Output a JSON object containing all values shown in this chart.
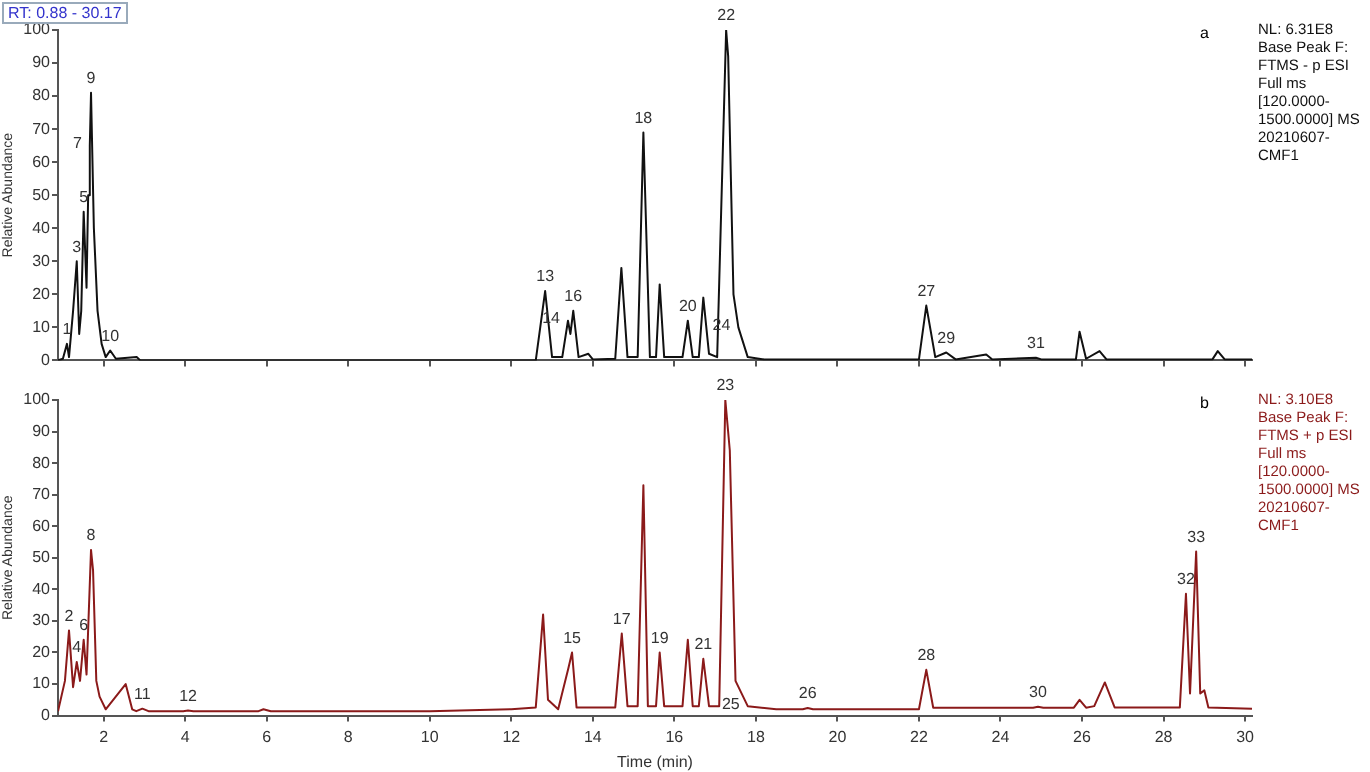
{
  "chart_data": [
    {
      "type": "line",
      "title": "RT: 0.88 - 30.17",
      "ylabel": "Relative Abundance",
      "tick_labels": "y",
      "marker": "none",
      "line_style": "solid",
      "xlim": [
        0.88,
        30.17
      ],
      "ylim": [
        0,
        100
      ],
      "xticks": [
        2,
        4,
        6,
        8,
        10,
        12,
        14,
        16,
        18,
        20,
        22,
        24,
        26,
        28,
        30
      ],
      "yticks": [
        0,
        10,
        20,
        30,
        40,
        50,
        60,
        70,
        80,
        90,
        100
      ],
      "x": [
        0.88,
        1.0,
        1.1,
        1.15,
        1.25,
        1.34,
        1.4,
        1.45,
        1.51,
        1.58,
        1.62,
        1.66,
        1.69,
        1.76,
        1.85,
        1.95,
        2.05,
        2.16,
        2.3,
        2.81,
        2.9,
        12.6,
        12.83,
        13.0,
        13.25,
        13.39,
        13.45,
        13.52,
        13.65,
        13.89,
        14.0,
        14.55,
        14.7,
        14.85,
        15.1,
        15.24,
        15.4,
        15.55,
        15.64,
        15.75,
        16.2,
        16.33,
        16.45,
        16.6,
        16.71,
        16.85,
        17.05,
        17.27,
        17.32,
        17.45,
        17.57,
        17.8,
        18.2,
        22.0,
        22.18,
        22.4,
        22.67,
        22.9,
        23.65,
        23.8,
        24.87,
        25.0,
        25.85,
        25.94,
        26.1,
        26.43,
        26.6,
        29.2,
        29.33,
        29.5,
        30.17
      ],
      "series": [
        {
          "color": "#111111",
          "values": [
            0,
            0.5,
            5,
            1,
            15,
            30,
            8,
            15,
            45,
            22,
            50,
            65,
            81,
            40,
            15,
            5,
            1,
            3,
            0.5,
            1,
            0,
            0,
            21,
            1,
            1,
            12,
            8,
            15,
            1,
            2,
            0.3,
            0.5,
            28,
            1,
            1,
            69,
            1,
            1,
            23,
            1,
            1,
            12,
            1,
            1,
            19,
            2,
            1,
            100,
            92,
            20,
            10,
            1,
            0.3,
            0.3,
            16.6,
            1,
            2.4,
            0.3,
            1.8,
            0.3,
            0.8,
            0.3,
            0.3,
            8.7,
            0.5,
            2.8,
            0.3,
            0.3,
            2.8,
            0.3,
            0.3
          ]
        }
      ],
      "annotations": [
        "a",
        "NL: 6.31E8\nBase Peak F: FTMS - p ESI Full ms [120.0000-1500.0000] MS 20210607-CMF1",
        {
          "text": "1",
          "x": 1.1,
          "y": 5
        },
        {
          "text": "3",
          "x": 1.34,
          "y": 30
        },
        {
          "text": "5",
          "x": 1.51,
          "y": 45
        },
        {
          "text": "7",
          "x": 1.66,
          "y": 65
        },
        {
          "text": "9",
          "x": 1.69,
          "y": 81
        },
        {
          "text": "10",
          "x": 2.16,
          "y": 3
        },
        {
          "text": "13",
          "x": 12.83,
          "y": 21
        },
        {
          "text": "14",
          "x": 13.39,
          "y": 12
        },
        {
          "text": "16",
          "x": 13.52,
          "y": 15
        },
        {
          "text": "18",
          "x": 15.24,
          "y": 69
        },
        {
          "text": "20",
          "x": 16.33,
          "y": 12
        },
        {
          "text": "22",
          "x": 17.27,
          "y": 100
        },
        {
          "text": "24",
          "x": 17.57,
          "y": 10
        },
        {
          "text": "27",
          "x": 22.18,
          "y": 16.6
        },
        {
          "text": "29",
          "x": 22.67,
          "y": 2.4
        },
        {
          "text": "31",
          "x": 24.87,
          "y": 0.8
        }
      ]
    },
    {
      "type": "line",
      "xlabel": "Time (min)",
      "ylabel": "Relative Abundance",
      "marker": "none",
      "line_style": "solid",
      "xlim": [
        0.88,
        30.17
      ],
      "ylim": [
        0,
        100
      ],
      "xticks": [
        2,
        4,
        6,
        8,
        10,
        12,
        14,
        16,
        18,
        20,
        22,
        24,
        26,
        28,
        30
      ],
      "yticks": [
        0,
        10,
        20,
        30,
        40,
        50,
        60,
        70,
        80,
        90,
        100
      ],
      "x": [
        0.88,
        1.05,
        1.15,
        1.25,
        1.34,
        1.42,
        1.51,
        1.58,
        1.69,
        1.74,
        1.82,
        1.9,
        2.05,
        2.54,
        2.7,
        2.8,
        2.95,
        3.1,
        3.95,
        4.07,
        4.2,
        5.8,
        5.92,
        6.1,
        10.0,
        12.0,
        12.6,
        12.78,
        12.9,
        13.15,
        13.4,
        13.49,
        13.6,
        14.55,
        14.71,
        14.85,
        15.1,
        15.24,
        15.35,
        15.55,
        15.64,
        15.75,
        16.2,
        16.33,
        16.45,
        16.6,
        16.71,
        16.85,
        17.1,
        17.25,
        17.36,
        17.5,
        17.8,
        18.5,
        19.15,
        19.27,
        19.4,
        22.0,
        22.18,
        22.35,
        24.8,
        24.92,
        25.05,
        25.8,
        25.94,
        26.1,
        26.3,
        26.56,
        26.8,
        28.4,
        28.55,
        28.65,
        28.8,
        28.9,
        29.0,
        29.1,
        30.17
      ],
      "series": [
        {
          "color": "#8b1a1a",
          "values": [
            1.4,
            11,
            27,
            9,
            17,
            11,
            24,
            13,
            52.5,
            46,
            11,
            6,
            2,
            10,
            2,
            1.4,
            2.2,
            1.4,
            1.4,
            1.6,
            1.4,
            1.4,
            2,
            1.4,
            1.4,
            2,
            2.6,
            32,
            5,
            2,
            15,
            20,
            2.6,
            2.6,
            26,
            3,
            3,
            73,
            3,
            3,
            20,
            3,
            3,
            24,
            3,
            3,
            18,
            3,
            3,
            100,
            84,
            11,
            3,
            2,
            2,
            2.4,
            2,
            2,
            14.5,
            2.5,
            2.5,
            2.8,
            2.5,
            2.5,
            5,
            2.5,
            3,
            10.5,
            2.6,
            2.6,
            38.6,
            7,
            52,
            7,
            8,
            2.6,
            2.2
          ]
        }
      ],
      "annotations": [
        "b",
        "NL: 3.10E8\nBase Peak F: FTMS + p ESI Full ms [120.0000-1500.0000] MS 20210607-CMF1",
        {
          "text": "2",
          "x": 1.15,
          "y": 27
        },
        {
          "text": "4",
          "x": 1.34,
          "y": 17
        },
        {
          "text": "6",
          "x": 1.51,
          "y": 24
        },
        {
          "text": "8",
          "x": 1.69,
          "y": 52.5
        },
        {
          "text": "11",
          "x": 2.95,
          "y": 2.2
        },
        {
          "text": "12",
          "x": 4.07,
          "y": 1.6
        },
        {
          "text": "15",
          "x": 13.49,
          "y": 20
        },
        {
          "text": "17",
          "x": 14.71,
          "y": 26
        },
        {
          "text": "19",
          "x": 15.64,
          "y": 20
        },
        {
          "text": "21",
          "x": 16.71,
          "y": 18
        },
        {
          "text": "23",
          "x": 17.25,
          "y": 100
        },
        {
          "text": "25",
          "x": 17.8,
          "y": 3
        },
        {
          "text": "26",
          "x": 19.27,
          "y": 2.4
        },
        {
          "text": "28",
          "x": 22.18,
          "y": 14.5
        },
        {
          "text": "30",
          "x": 24.92,
          "y": 2.8
        },
        {
          "text": "32",
          "x": 28.55,
          "y": 38.6
        },
        {
          "text": "33",
          "x": 28.8,
          "y": 52
        }
      ]
    }
  ]
}
